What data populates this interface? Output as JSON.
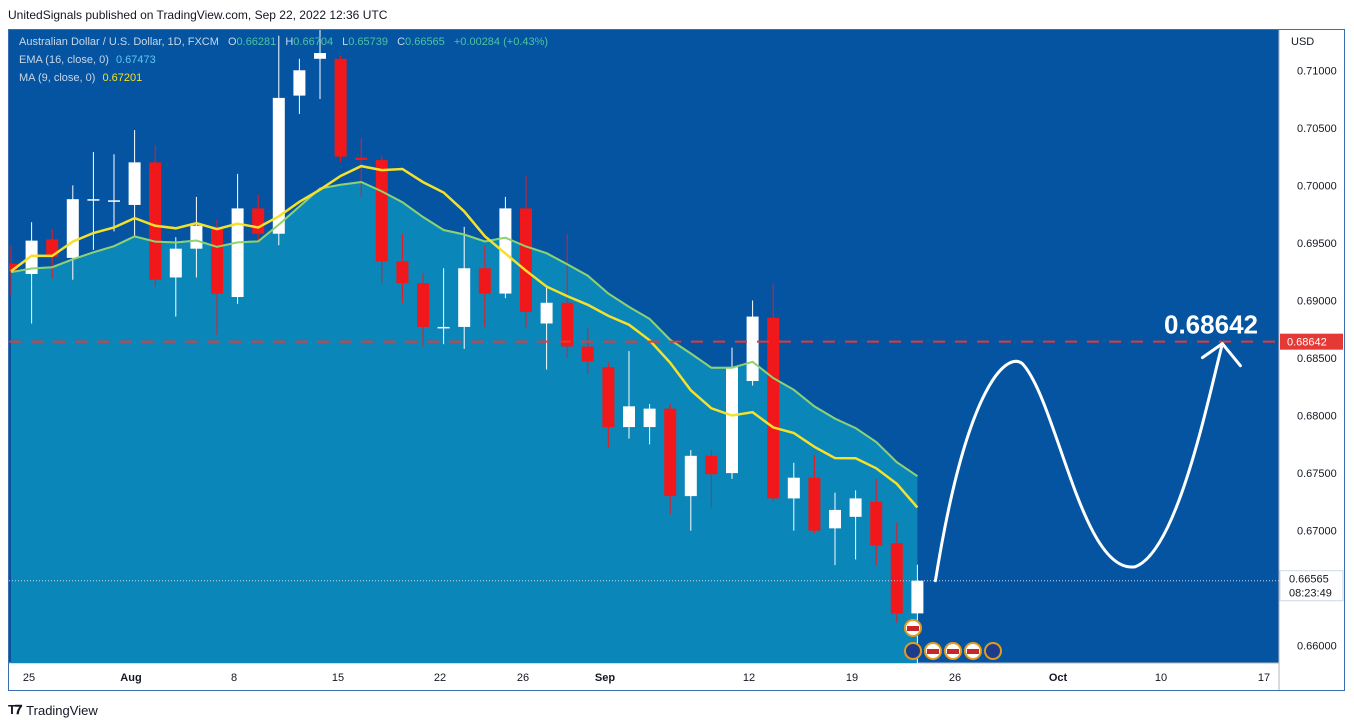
{
  "header": {
    "published_text": "UnitedSignals published on TradingView.com, Sep 22, 2022 12:36 UTC"
  },
  "legend": {
    "symbol": "Australian Dollar / U.S. Dollar, 1D, FXCM",
    "o_label": "O",
    "o_value": "0.66281",
    "h_label": "H",
    "h_value": "0.66704",
    "l_label": "L",
    "l_value": "0.65739",
    "c_label": "C",
    "c_value": "0.66565",
    "change": "+0.00284 (+0.43%)",
    "ema_label": "EMA (16, close, 0)",
    "ema_value": "0.67473",
    "ma_label": "MA (9, close, 0)",
    "ma_value": "0.67201"
  },
  "price_axis": {
    "currency": "USD",
    "ticks": [
      "0.71000",
      "0.70500",
      "0.70000",
      "0.69500",
      "0.69000",
      "0.68500",
      "0.68000",
      "0.67500",
      "0.67000",
      "0.66500",
      "0.66000"
    ]
  },
  "time_axis": {
    "labels": [
      "25",
      "Aug",
      "8",
      "15",
      "22",
      "26",
      "Sep",
      "12",
      "19",
      "26",
      "Oct",
      "10",
      "17"
    ]
  },
  "markers": {
    "target_level": "0.68642",
    "target_big_label": "0.68642",
    "last_price": "0.66565",
    "countdown": "08:23:49"
  },
  "footer": {
    "brand": "TradingView"
  },
  "colors": {
    "background": "#0454a1",
    "area_fill": "#0a86b9",
    "area_edge": "#1d9fd0",
    "bull": "#ffffff",
    "bear": "#f0181b",
    "ema": "#8fd16f",
    "ma": "#f5e12b",
    "target_line": "#e53935",
    "projection": "#ffffff",
    "legend_value": "#4fc3a1"
  },
  "chart_data": {
    "type": "candlestick",
    "title": "Australian Dollar / U.S. Dollar, 1D, FXCM",
    "y_range": [
      0.6585,
      0.7135
    ],
    "candles": [
      {
        "date": "2022-07-22",
        "o": 0.6932,
        "h": 0.6948,
        "l": 0.6905,
        "c": 0.6925
      },
      {
        "date": "2022-07-25",
        "o": 0.6923,
        "h": 0.6968,
        "l": 0.688,
        "c": 0.6952
      },
      {
        "date": "2022-07-26",
        "o": 0.6953,
        "h": 0.6962,
        "l": 0.6919,
        "c": 0.6938
      },
      {
        "date": "2022-07-27",
        "o": 0.6937,
        "h": 0.7,
        "l": 0.6918,
        "c": 0.6988
      },
      {
        "date": "2022-07-28",
        "o": 0.6988,
        "h": 0.7029,
        "l": 0.6944,
        "c": 0.6988
      },
      {
        "date": "2022-07-29",
        "o": 0.6987,
        "h": 0.7027,
        "l": 0.696,
        "c": 0.6987
      },
      {
        "date": "2022-08-01",
        "o": 0.6983,
        "h": 0.7048,
        "l": 0.6955,
        "c": 0.702
      },
      {
        "date": "2022-08-02",
        "o": 0.702,
        "h": 0.7035,
        "l": 0.6912,
        "c": 0.6918
      },
      {
        "date": "2022-08-03",
        "o": 0.692,
        "h": 0.6955,
        "l": 0.6886,
        "c": 0.6945
      },
      {
        "date": "2022-08-04",
        "o": 0.6945,
        "h": 0.699,
        "l": 0.692,
        "c": 0.6965
      },
      {
        "date": "2022-08-05",
        "o": 0.6963,
        "h": 0.697,
        "l": 0.687,
        "c": 0.6906
      },
      {
        "date": "2022-08-08",
        "o": 0.6903,
        "h": 0.701,
        "l": 0.6897,
        "c": 0.698
      },
      {
        "date": "2022-08-09",
        "o": 0.698,
        "h": 0.6992,
        "l": 0.695,
        "c": 0.6958
      },
      {
        "date": "2022-08-10",
        "o": 0.6958,
        "h": 0.713,
        "l": 0.6948,
        "c": 0.7076
      },
      {
        "date": "2022-08-11",
        "o": 0.7078,
        "h": 0.711,
        "l": 0.7062,
        "c": 0.71
      },
      {
        "date": "2022-08-12",
        "o": 0.711,
        "h": 0.7135,
        "l": 0.7075,
        "c": 0.7115
      },
      {
        "date": "2022-08-15",
        "o": 0.711,
        "h": 0.7113,
        "l": 0.702,
        "c": 0.7025
      },
      {
        "date": "2022-08-16",
        "o": 0.7024,
        "h": 0.7041,
        "l": 0.699,
        "c": 0.7022
      },
      {
        "date": "2022-08-17",
        "o": 0.7022,
        "h": 0.7026,
        "l": 0.6915,
        "c": 0.6934
      },
      {
        "date": "2022-08-18",
        "o": 0.6934,
        "h": 0.6958,
        "l": 0.6898,
        "c": 0.6915
      },
      {
        "date": "2022-08-19",
        "o": 0.6915,
        "h": 0.6924,
        "l": 0.686,
        "c": 0.6877
      },
      {
        "date": "2022-08-22",
        "o": 0.6877,
        "h": 0.6928,
        "l": 0.6862,
        "c": 0.6877
      },
      {
        "date": "2022-08-23",
        "o": 0.6877,
        "h": 0.6964,
        "l": 0.6858,
        "c": 0.6928
      },
      {
        "date": "2022-08-24",
        "o": 0.6928,
        "h": 0.6948,
        "l": 0.6877,
        "c": 0.6906
      },
      {
        "date": "2022-08-25",
        "o": 0.6906,
        "h": 0.699,
        "l": 0.6902,
        "c": 0.698
      },
      {
        "date": "2022-08-26",
        "o": 0.698,
        "h": 0.7008,
        "l": 0.6876,
        "c": 0.689
      },
      {
        "date": "2022-08-29",
        "o": 0.688,
        "h": 0.6912,
        "l": 0.684,
        "c": 0.6898
      },
      {
        "date": "2022-08-30",
        "o": 0.6898,
        "h": 0.6958,
        "l": 0.685,
        "c": 0.686
      },
      {
        "date": "2022-08-31",
        "o": 0.686,
        "h": 0.6876,
        "l": 0.6836,
        "c": 0.6847
      },
      {
        "date": "2022-09-01",
        "o": 0.6842,
        "h": 0.6846,
        "l": 0.6772,
        "c": 0.679
      },
      {
        "date": "2022-09-02",
        "o": 0.679,
        "h": 0.6856,
        "l": 0.678,
        "c": 0.6808
      },
      {
        "date": "2022-09-05",
        "o": 0.679,
        "h": 0.681,
        "l": 0.6775,
        "c": 0.6806
      },
      {
        "date": "2022-09-06",
        "o": 0.6806,
        "h": 0.681,
        "l": 0.6714,
        "c": 0.673
      },
      {
        "date": "2022-09-07",
        "o": 0.673,
        "h": 0.677,
        "l": 0.67,
        "c": 0.6765
      },
      {
        "date": "2022-09-08",
        "o": 0.6765,
        "h": 0.677,
        "l": 0.672,
        "c": 0.6749
      },
      {
        "date": "2022-09-09",
        "o": 0.675,
        "h": 0.6859,
        "l": 0.6745,
        "c": 0.6842
      },
      {
        "date": "2022-09-12",
        "o": 0.683,
        "h": 0.69,
        "l": 0.6826,
        "c": 0.6886
      },
      {
        "date": "2022-09-13",
        "o": 0.6885,
        "h": 0.6915,
        "l": 0.6725,
        "c": 0.6728
      },
      {
        "date": "2022-09-14",
        "o": 0.6728,
        "h": 0.6759,
        "l": 0.67,
        "c": 0.6746
      },
      {
        "date": "2022-09-15",
        "o": 0.6746,
        "h": 0.6766,
        "l": 0.6698,
        "c": 0.67
      },
      {
        "date": "2022-09-16",
        "o": 0.6702,
        "h": 0.6733,
        "l": 0.667,
        "c": 0.6718
      },
      {
        "date": "2022-09-19",
        "o": 0.6712,
        "h": 0.6735,
        "l": 0.6675,
        "c": 0.6728
      },
      {
        "date": "2022-09-20",
        "o": 0.6725,
        "h": 0.6745,
        "l": 0.667,
        "c": 0.6687
      },
      {
        "date": "2022-09-21",
        "o": 0.6689,
        "h": 0.6707,
        "l": 0.662,
        "c": 0.6628
      },
      {
        "date": "2022-09-22",
        "o": 0.66281,
        "h": 0.66704,
        "l": 0.65739,
        "c": 0.66565
      }
    ],
    "ema16_last": 0.67473,
    "ma9_last": 0.67201,
    "target": 0.68642
  }
}
